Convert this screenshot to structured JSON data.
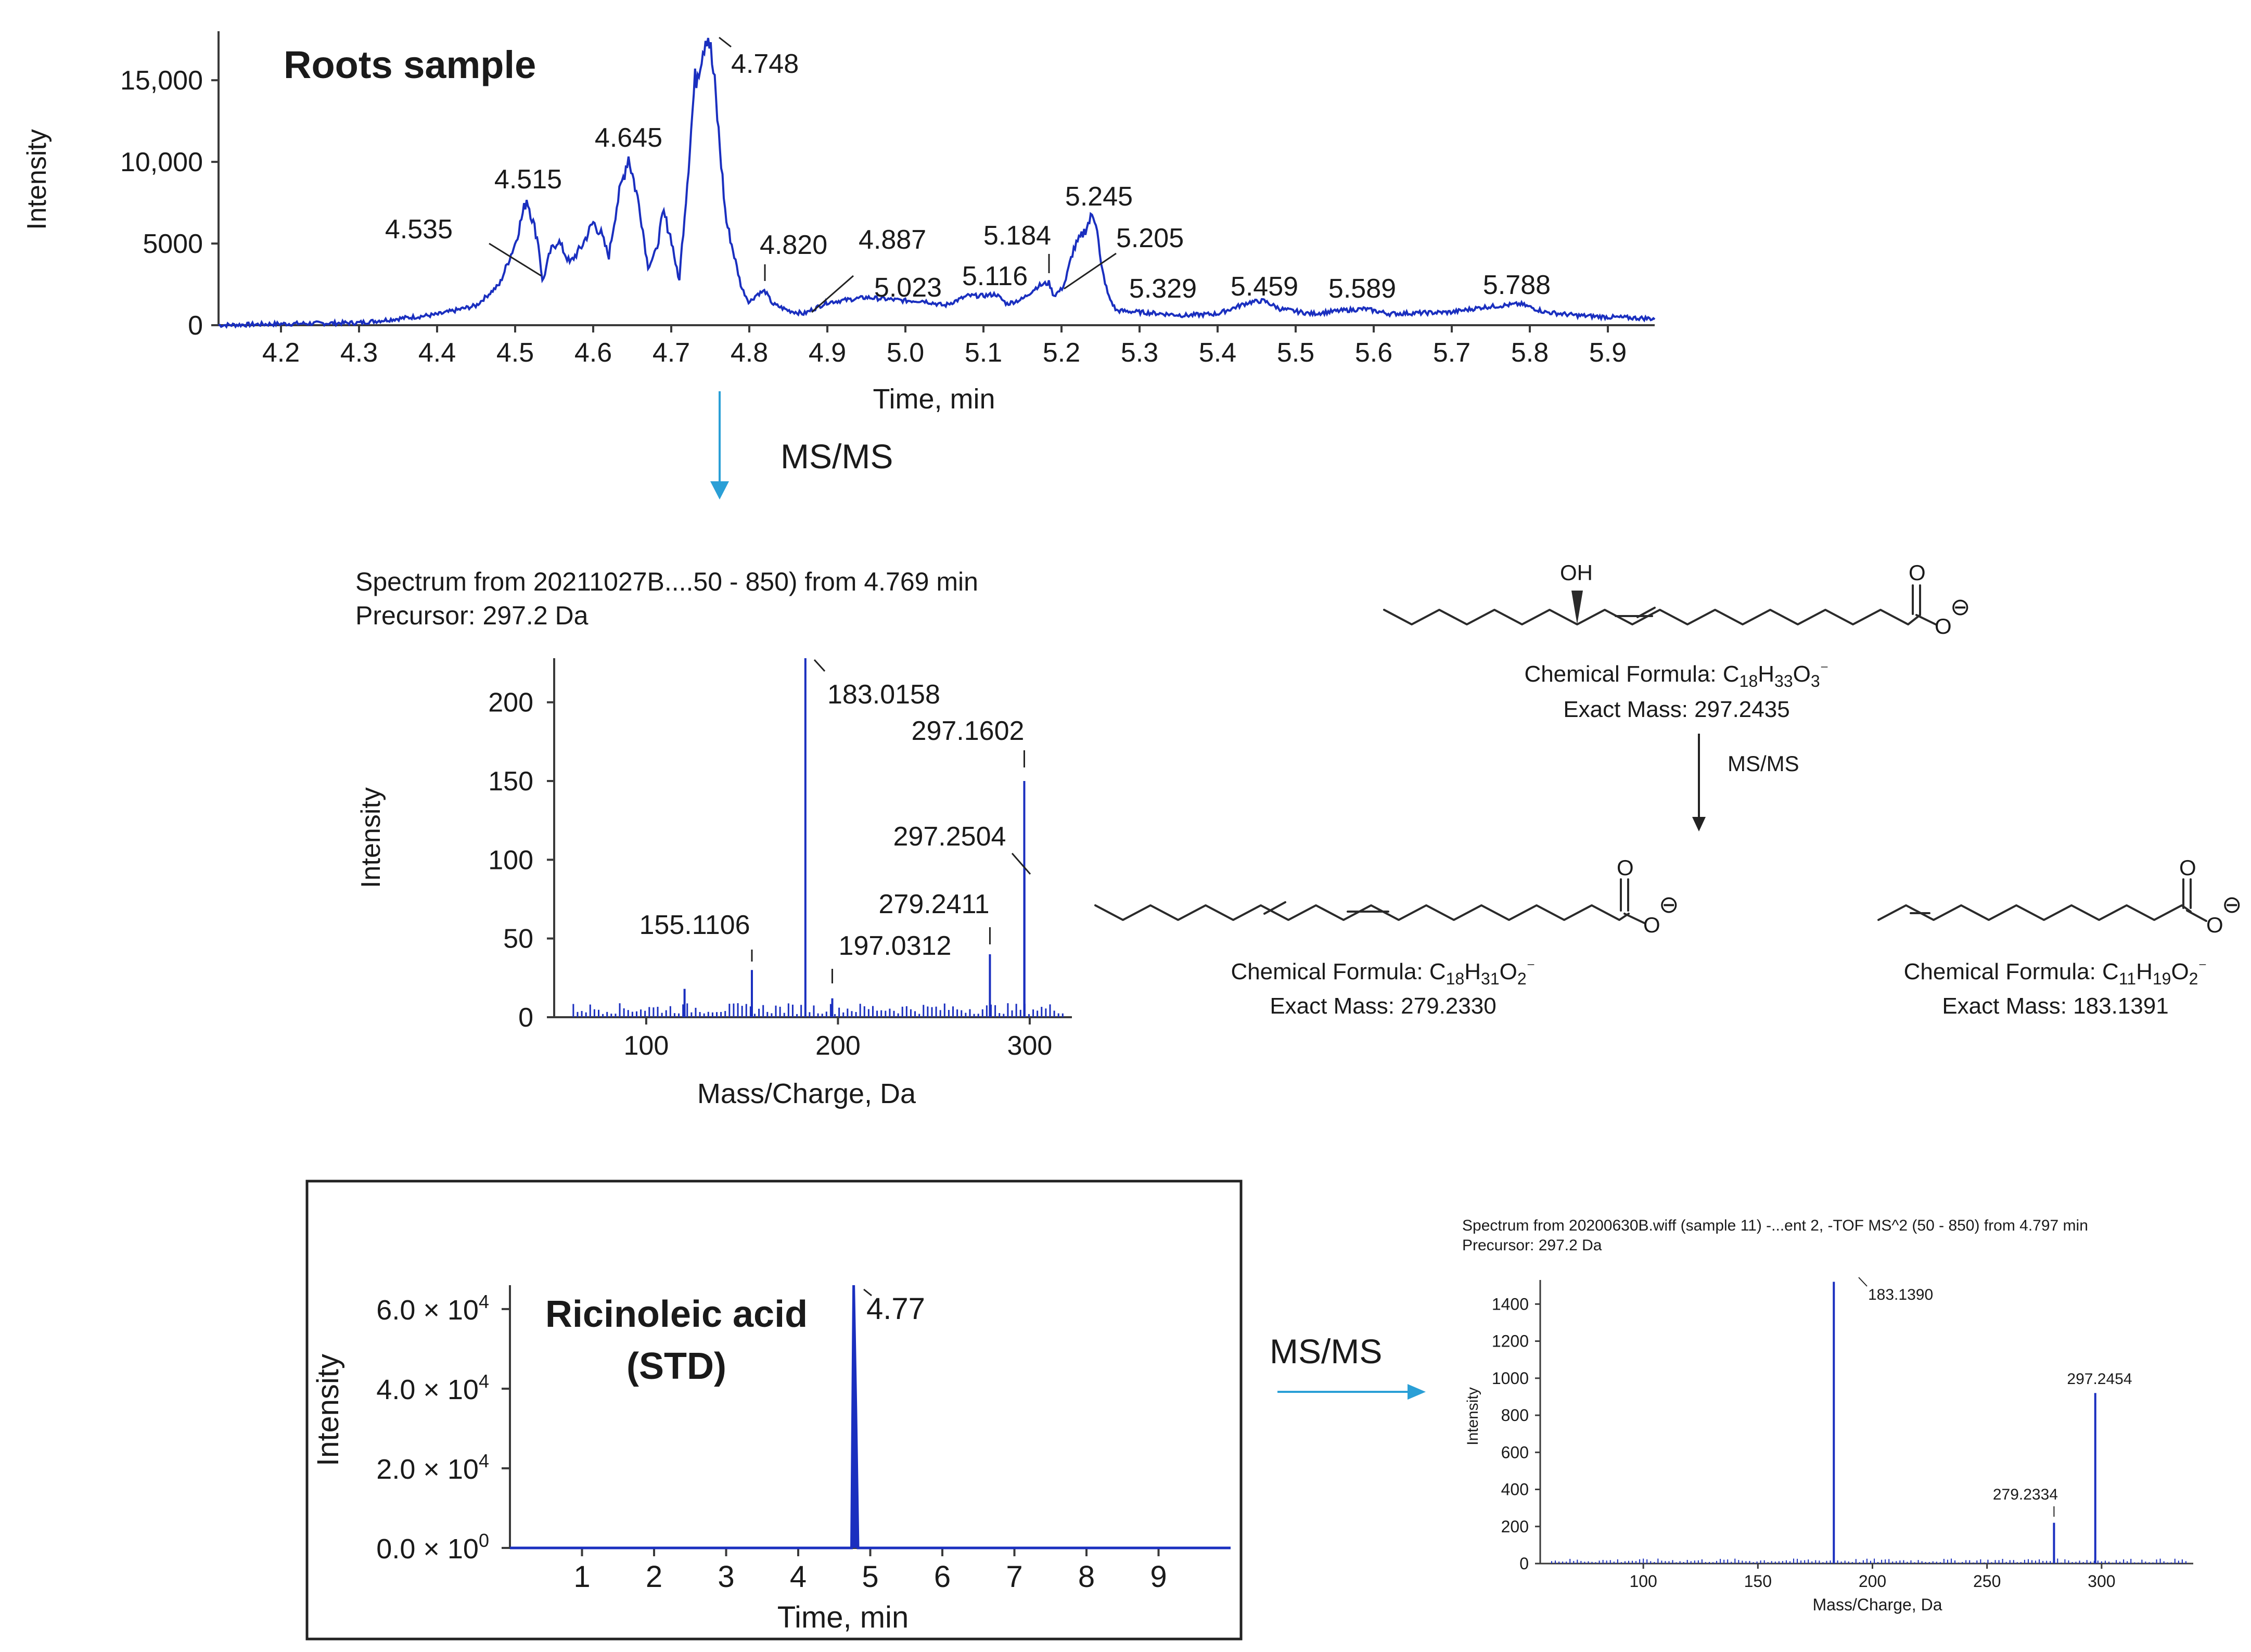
{
  "colors": {
    "trace": "#1a2fbf",
    "arrow": "#2a9fd6",
    "axis": "#3a3a3a",
    "text": "#1a1a1a"
  },
  "chart_data": [
    {
      "id": "roots_chromatogram",
      "type": "line",
      "title": "Roots sample",
      "xlabel": "Time, min",
      "ylabel": "Intensity",
      "xlim": [
        4.12,
        5.96
      ],
      "ylim": [
        0,
        18000
      ],
      "x_ticks": [
        "4.2",
        "4.3",
        "4.4",
        "4.5",
        "4.6",
        "4.7",
        "4.8",
        "4.9",
        "5.0",
        "5.1",
        "5.2",
        "5.3",
        "5.4",
        "5.5",
        "5.6",
        "5.7",
        "5.8",
        "5.9"
      ],
      "y_ticks": [
        "0",
        "5000",
        "10,000",
        "15,000"
      ],
      "y_tick_values": [
        0,
        5000,
        10000,
        15000
      ],
      "series": [
        {
          "x": [
            4.12,
            4.2,
            4.3,
            4.35,
            4.4,
            4.45,
            4.48,
            4.5,
            4.515,
            4.53,
            4.535,
            4.545,
            4.555,
            4.57,
            4.585,
            4.6,
            4.61,
            4.62,
            4.63,
            4.645,
            4.66,
            4.67,
            4.68,
            4.69,
            4.7,
            4.71,
            4.72,
            4.73,
            4.745,
            4.748,
            4.755,
            4.77,
            4.79,
            4.8,
            4.81,
            4.82,
            4.83,
            4.85,
            4.87,
            4.887,
            4.9,
            4.95,
            5.0,
            5.023,
            5.05,
            5.08,
            5.1,
            5.116,
            5.13,
            5.15,
            5.17,
            5.184,
            5.19,
            5.2,
            5.205,
            5.215,
            5.23,
            5.24,
            5.245,
            5.25,
            5.26,
            5.27,
            5.3,
            5.329,
            5.36,
            5.4,
            5.44,
            5.459,
            5.48,
            5.52,
            5.56,
            5.589,
            5.62,
            5.66,
            5.7,
            5.74,
            5.788,
            5.82,
            5.86,
            5.9,
            5.96
          ],
          "y": [
            0,
            80,
            150,
            400,
            650,
            1200,
            2500,
            5000,
            7800,
            5000,
            2600,
            4500,
            5200,
            3800,
            4800,
            6300,
            5600,
            4200,
            7300,
            10400,
            7100,
            3600,
            4400,
            6900,
            5300,
            2600,
            8500,
            14800,
            18000,
            17700,
            15000,
            6500,
            2300,
            1400,
            1900,
            2100,
            1300,
            900,
            700,
            1100,
            1400,
            1700,
            1500,
            1500,
            1200,
            1800,
            1800,
            1900,
            1300,
            1600,
            2400,
            2600,
            1800,
            2200,
            2700,
            4600,
            5800,
            6800,
            6300,
            3800,
            1800,
            900,
            800,
            700,
            600,
            700,
            1400,
            1500,
            1000,
            700,
            900,
            1000,
            700,
            750,
            800,
            1100,
            1300,
            800,
            600,
            500,
            400
          ]
        }
      ],
      "peak_labels": [
        {
          "text": "4.535",
          "x": 4.535
        },
        {
          "text": "4.515",
          "x": 4.515
        },
        {
          "text": "4.645",
          "x": 4.645
        },
        {
          "text": "4.748",
          "x": 4.748
        },
        {
          "text": "4.820",
          "x": 4.82
        },
        {
          "text": "4.887",
          "x": 4.887
        },
        {
          "text": "5.023",
          "x": 5.023
        },
        {
          "text": "5.116",
          "x": 5.116
        },
        {
          "text": "5.184",
          "x": 5.184
        },
        {
          "text": "5.245",
          "x": 5.245
        },
        {
          "text": "5.205",
          "x": 5.205
        },
        {
          "text": "5.329",
          "x": 5.329
        },
        {
          "text": "5.459",
          "x": 5.459
        },
        {
          "text": "5.589",
          "x": 5.589
        },
        {
          "text": "5.788",
          "x": 5.788
        }
      ]
    },
    {
      "id": "roots_msms",
      "type": "bar",
      "title": "Spectrum from 20211027B....50 - 850) from 4.769 min",
      "subtitle": "Precursor: 297.2 Da",
      "xlabel": "Mass/Charge, Da",
      "ylabel": "Intensity",
      "xlim": [
        52,
        322
      ],
      "ylim": [
        0,
        228
      ],
      "x_ticks": [
        "100",
        "200",
        "300"
      ],
      "x_tick_values": [
        100,
        200,
        300
      ],
      "y_ticks": [
        "0",
        "50",
        "100",
        "150",
        "200"
      ],
      "y_tick_values": [
        0,
        50,
        100,
        150,
        200
      ],
      "peaks": [
        {
          "mz": 120,
          "intensity": 18
        },
        {
          "mz": 155.1106,
          "intensity": 30,
          "label": "155.1106"
        },
        {
          "mz": 183.0158,
          "intensity": 228,
          "label": "183.0158"
        },
        {
          "mz": 197.0312,
          "intensity": 12,
          "label": "197.0312"
        },
        {
          "mz": 279.2411,
          "intensity": 40,
          "label": "279.2411"
        },
        {
          "mz": 297.2504,
          "intensity": 95,
          "label": "297.2504"
        },
        {
          "mz": 297.1602,
          "intensity": 150,
          "label": "297.1602"
        }
      ]
    },
    {
      "id": "std_chromatogram",
      "type": "line",
      "title": "Ricinoleic acid (STD)",
      "title_lines": [
        "Ricinoleic acid",
        "(STD)"
      ],
      "xlabel": "Time, min",
      "ylabel": "Intensity",
      "xlim": [
        0,
        10
      ],
      "ylim": [
        0,
        66000
      ],
      "x_ticks": [
        "1",
        "2",
        "3",
        "4",
        "5",
        "6",
        "7",
        "8",
        "9"
      ],
      "y_ticks": [
        {
          "mant": "0.0",
          "exp": "0",
          "value": 0
        },
        {
          "mant": "2.0",
          "exp": "4",
          "value": 20000
        },
        {
          "mant": "4.0",
          "exp": "4",
          "value": 40000
        },
        {
          "mant": "6.0",
          "exp": "4",
          "value": 60000
        }
      ],
      "series": [
        {
          "x": [
            0,
            4.74,
            4.77,
            4.8,
            4.83,
            10
          ],
          "y": [
            0,
            0,
            66000,
            35000,
            0,
            0
          ]
        }
      ],
      "peak_label": {
        "text": "4.77",
        "x": 4.77
      }
    },
    {
      "id": "std_msms",
      "type": "bar",
      "title": "Spectrum from 20200630B.wiff (sample 11) -...ent 2, -TOF MS^2 (50 - 850) from 4.797 min",
      "subtitle": "Precursor: 297.2 Da",
      "xlabel": "Mass/Charge, Da",
      "ylabel": "Intensity",
      "xlim": [
        55,
        340
      ],
      "ylim": [
        0,
        1530
      ],
      "x_ticks": [
        "100",
        "150",
        "200",
        "250",
        "300"
      ],
      "x_tick_values": [
        100,
        150,
        200,
        250,
        300
      ],
      "y_ticks": [
        "0",
        "200",
        "400",
        "600",
        "800",
        "1000",
        "1200",
        "1400"
      ],
      "y_tick_values": [
        0,
        200,
        400,
        600,
        800,
        1000,
        1200,
        1400
      ],
      "peaks": [
        {
          "mz": 183.139,
          "intensity": 1520,
          "label": "183.1390"
        },
        {
          "mz": 279.2334,
          "intensity": 220,
          "label": "279.2334"
        },
        {
          "mz": 297.2454,
          "intensity": 920,
          "label": "297.2454"
        }
      ]
    }
  ],
  "arrows": {
    "msms_1": "MS/MS",
    "msms_2": "MS/MS",
    "msms_3": "MS/MS"
  },
  "structures": {
    "ricinoleate": {
      "oh": "OH",
      "o": "O",
      "charge": "⊖",
      "formula_prefix": "Chemical Formula: C",
      "formula_parts": [
        "18",
        "H",
        "33",
        "O",
        "3",
        "⁻"
      ],
      "mass": "Exact Mass: 297.2435"
    },
    "linoleate": {
      "o": "O",
      "charge": "⊖",
      "formula_prefix": "Chemical Formula: C",
      "formula_parts": [
        "18",
        "H",
        "31",
        "O",
        "2",
        "⁻"
      ],
      "mass": "Exact Mass: 279.2330"
    },
    "undecenoate": {
      "o": "O",
      "charge": "⊖",
      "formula_prefix": "Chemical Formula: C",
      "formula_parts": [
        "11",
        "H",
        "19",
        "O",
        "2",
        "⁻"
      ],
      "mass": "Exact Mass: 183.1391"
    }
  }
}
